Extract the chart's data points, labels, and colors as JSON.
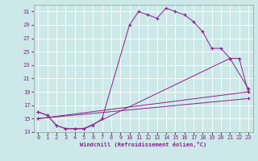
{
  "xlabel": "Windchill (Refroidissement éolien,°C)",
  "background_color": "#cce8e8",
  "grid_color": "#ffffff",
  "line_color": "#882288",
  "xlim": [
    -0.5,
    23.5
  ],
  "ylim": [
    13,
    32
  ],
  "yticks": [
    13,
    15,
    17,
    19,
    21,
    23,
    25,
    27,
    29,
    31
  ],
  "xticks": [
    0,
    1,
    2,
    3,
    4,
    5,
    6,
    7,
    8,
    9,
    10,
    11,
    12,
    13,
    14,
    15,
    16,
    17,
    18,
    19,
    20,
    21,
    22,
    23
  ],
  "series1_x": [
    0,
    1,
    2,
    3,
    4,
    5,
    6,
    7,
    10,
    11,
    12,
    13,
    14,
    15,
    16,
    17,
    18,
    19,
    20,
    21,
    23
  ],
  "series1_y": [
    16,
    15.5,
    14,
    13.5,
    13.5,
    13.5,
    14,
    15,
    29,
    31,
    30.5,
    30,
    31.5,
    31,
    30.5,
    29.5,
    28,
    25.5,
    25.5,
    24,
    19.5
  ],
  "series2_x": [
    0,
    1,
    2,
    3,
    4,
    5,
    21,
    22,
    23
  ],
  "series2_y": [
    16,
    15.5,
    14,
    13.5,
    13.5,
    13.5,
    24,
    24,
    19
  ],
  "series3_x": [
    0,
    23
  ],
  "series3_y": [
    15,
    19
  ],
  "series4_x": [
    0,
    23
  ],
  "series4_y": [
    15,
    18
  ]
}
